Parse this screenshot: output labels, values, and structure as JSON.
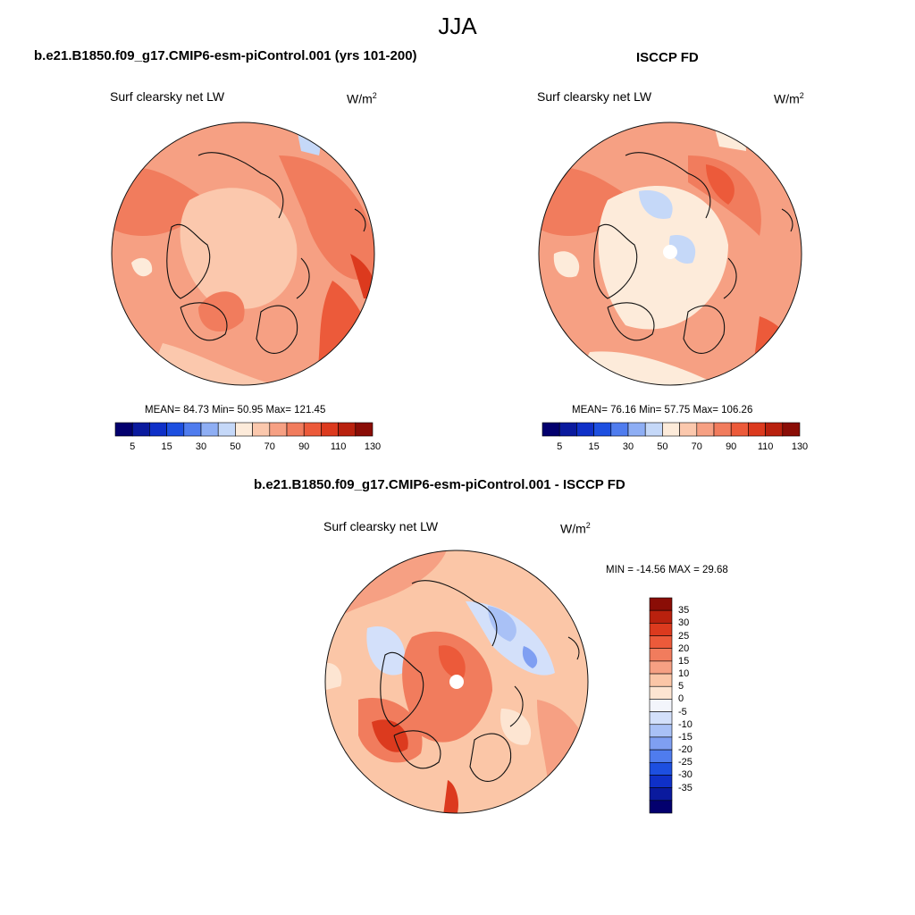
{
  "title": "JJA",
  "panels": [
    {
      "id": "model",
      "header": "b.e21.B1850.f09_g17.CMIP6-esm-piControl.001 (yrs 101-200)",
      "variable": "Surf clearsky net LW",
      "units_base": "W/m",
      "units_exp": "2",
      "stats": "MEAN=  84.73  Min=  50.95  Max= 121.45",
      "mean": 84.73,
      "min": 50.95,
      "max": 121.45
    },
    {
      "id": "obs",
      "header": "ISCCP FD",
      "variable": "Surf clearsky net LW",
      "units_base": "W/m",
      "units_exp": "2",
      "stats": "MEAN=  76.16  Min=  57.75  Max= 106.26",
      "mean": 76.16,
      "min": 57.75,
      "max": 106.26
    },
    {
      "id": "diff",
      "header": "b.e21.B1850.f09_g17.CMIP6-esm-piControl.001 - ISCCP FD",
      "variable": "Surf clearsky net LW",
      "units_base": "W/m",
      "units_exp": "2",
      "stats": "MIN = -14.56 MAX =  29.68",
      "min": -14.56,
      "max": 29.68
    }
  ],
  "colorbar_abs": {
    "colors": [
      "#03006e",
      "#0a1a9e",
      "#0f30c8",
      "#1d4fe0",
      "#4f7cee",
      "#8eaef4",
      "#c5d8f8",
      "#fdebda",
      "#fbc8ad",
      "#f6a083",
      "#f17c5d",
      "#ec5a3a",
      "#dc3a1e",
      "#b9210e",
      "#8a0d06"
    ],
    "tick_labels": [
      "5",
      "15",
      "30",
      "50",
      "70",
      "90",
      "110",
      "130"
    ]
  },
  "colorbar_diff": {
    "colors": [
      "#03006e",
      "#0a1a9e",
      "#0f30c8",
      "#1d4fe0",
      "#4f7cee",
      "#7f9ff2",
      "#a9c1f6",
      "#d3e0fa",
      "#f3f5fb",
      "#fde5d2",
      "#fbc6a7",
      "#f6a083",
      "#f17c5d",
      "#ec5a3a",
      "#dc3a1e",
      "#b9210e",
      "#8a0d06"
    ],
    "tick_labels": [
      "-35",
      "-30",
      "-25",
      "-20",
      "-15",
      "-10",
      "-5",
      "0",
      "5",
      "10",
      "15",
      "20",
      "25",
      "30",
      "35"
    ]
  },
  "chart_data": [
    {
      "type": "heatmap",
      "title": "b.e21.B1850.f09_g17.CMIP6-esm-piControl.001 (yrs 101-200)",
      "variable": "Surf clearsky net LW",
      "units": "W/m2",
      "mean": 84.73,
      "min": 50.95,
      "max": 121.45,
      "projection": "north polar stereographic"
    },
    {
      "type": "heatmap",
      "title": "ISCCP FD",
      "variable": "Surf clearsky net LW",
      "units": "W/m2",
      "mean": 76.16,
      "min": 57.75,
      "max": 106.26,
      "projection": "north polar stereographic"
    },
    {
      "type": "heatmap",
      "title": "b.e21.B1850.f09_g17.CMIP6-esm-piControl.001 - ISCCP FD",
      "variable": "Surf clearsky net LW",
      "units": "W/m2",
      "min": -14.56,
      "max": 29.68,
      "projection": "north polar stereographic"
    }
  ]
}
